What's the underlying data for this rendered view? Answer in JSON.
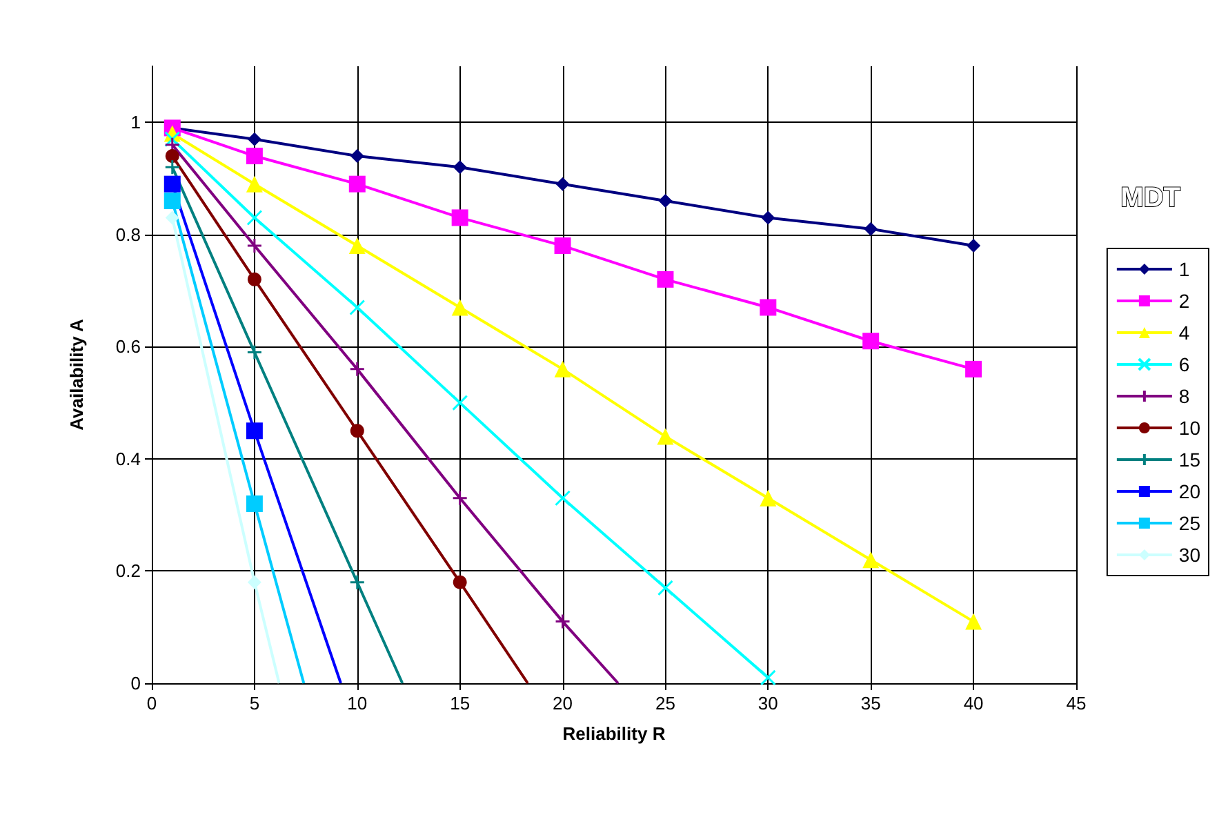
{
  "chart_data": {
    "type": "line",
    "xlabel": "Reliability R",
    "ylabel": "Availability A",
    "legend_title": "MDT",
    "legend": "right",
    "grid": true,
    "x": [
      1,
      5,
      10,
      15,
      20,
      25,
      30,
      35,
      40
    ],
    "xlim": [
      0,
      45
    ],
    "xticks": [
      0,
      5,
      10,
      15,
      20,
      25,
      30,
      35,
      40,
      45
    ],
    "ylim": [
      0,
      1.1
    ],
    "yticks": [
      0,
      0.2,
      0.4,
      0.6,
      0.8,
      1
    ],
    "series": [
      {
        "name": "1",
        "color": "#000080",
        "marker": "diamond",
        "values": [
          0.99,
          0.97,
          0.94,
          0.92,
          0.89,
          0.86,
          0.83,
          0.81,
          0.78
        ]
      },
      {
        "name": "2",
        "color": "#ff00ff",
        "marker": "square",
        "values": [
          0.99,
          0.94,
          0.89,
          0.83,
          0.78,
          0.72,
          0.67,
          0.61,
          0.56
        ]
      },
      {
        "name": "4",
        "color": "#ffff00",
        "marker": "triangle",
        "values": [
          0.98,
          0.89,
          0.78,
          0.67,
          0.56,
          0.44,
          0.33,
          0.22,
          0.11
        ]
      },
      {
        "name": "6",
        "color": "#00ffff",
        "marker": "x",
        "x": [
          1,
          5,
          10,
          15,
          20,
          25,
          30
        ],
        "values": [
          0.97,
          0.83,
          0.67,
          0.5,
          0.33,
          0.17,
          0.01
        ]
      },
      {
        "name": "8",
        "color": "#800080",
        "marker": "cross",
        "x": [
          1,
          5,
          10,
          15,
          20,
          22.7
        ],
        "values": [
          0.96,
          0.78,
          0.56,
          0.33,
          0.11,
          0
        ]
      },
      {
        "name": "10",
        "color": "#800000",
        "marker": "circle",
        "x": [
          1,
          5,
          10,
          15,
          18.3
        ],
        "values": [
          0.94,
          0.72,
          0.45,
          0.18,
          0
        ]
      },
      {
        "name": "15",
        "color": "#008080",
        "marker": "cross",
        "x": [
          1,
          5,
          10,
          12.2
        ],
        "values": [
          0.92,
          0.59,
          0.18,
          0
        ]
      },
      {
        "name": "20",
        "color": "#0000ff",
        "marker": "square",
        "x": [
          1,
          5,
          9.2
        ],
        "values": [
          0.89,
          0.45,
          0
        ]
      },
      {
        "name": "25",
        "color": "#00ccff",
        "marker": "square",
        "x": [
          1,
          5,
          7.4
        ],
        "values": [
          0.86,
          0.32,
          0
        ]
      },
      {
        "name": "30",
        "color": "#ccffff",
        "marker": "diamond",
        "x": [
          1,
          5,
          6.2
        ],
        "values": [
          0.83,
          0.18,
          0
        ]
      }
    ]
  }
}
